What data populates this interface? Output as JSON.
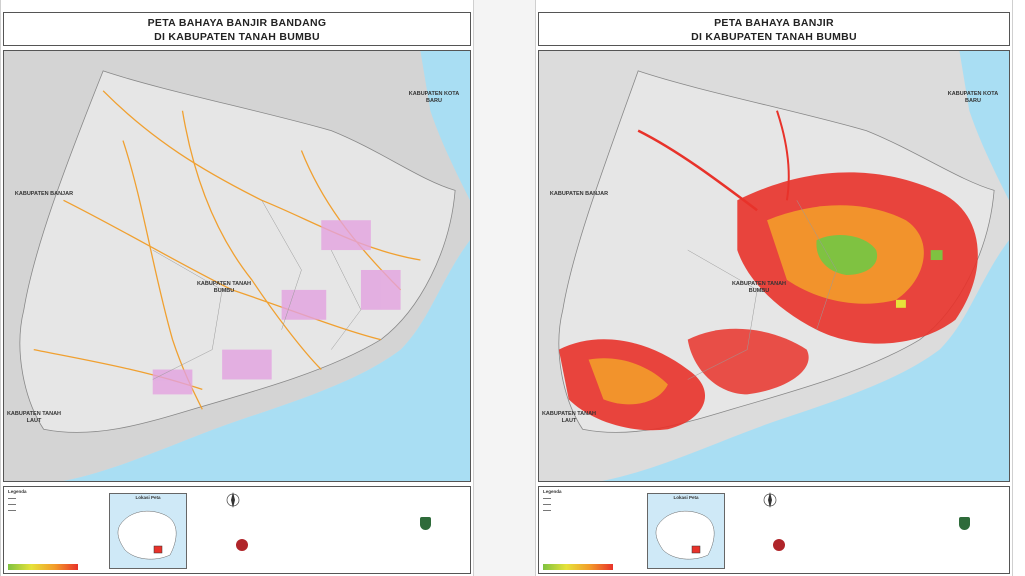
{
  "maps": [
    {
      "id": "flash-flood",
      "title_line1": "PETA BAHAYA BANJIR BANDANG",
      "title_line2": "DI KABUPATEN TANAH BUMBU",
      "labels": {
        "kotabaru": "KABUPATEN KOTA BARU",
        "banjar": "KABUPATEN BANJAR",
        "tanahbumbu": "KABUPATEN TANAH BUMBU",
        "tanahlaut": "KABUPATEN TANAH LAUT"
      },
      "legend_title": "Legenda",
      "inset_title": "Lokasi Peta",
      "hazard_overlay": "lines"
    },
    {
      "id": "flood",
      "title_line1": "PETA BAHAYA BANJIR",
      "title_line2": "DI KABUPATEN TANAH BUMBU",
      "labels": {
        "kotabaru": "KABUPATEN KOTA BARU",
        "banjar": "KABUPATEN BANJAR",
        "tanahbumbu": "KABUPATEN TANAH BUMBU",
        "tanahlaut": "KABUPATEN TANAH LAUT"
      },
      "legend_title": "Legenda",
      "inset_title": "Lokasi Peta",
      "hazard_overlay": "areas"
    }
  ],
  "colors": {
    "sea": "#a9def3",
    "land": "#d8d8d8",
    "hazard_high": "#e8322a",
    "hazard_medium": "#f39c2a",
    "hazard_low": "#7fc241",
    "pink_zone": "#e3a2e0"
  }
}
